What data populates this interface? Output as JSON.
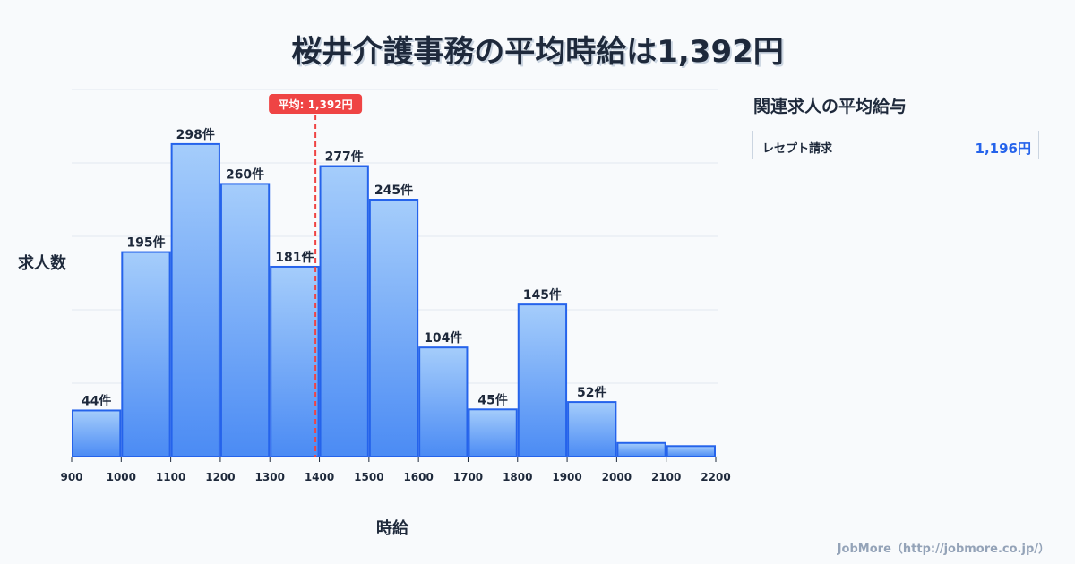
{
  "title": "桜井介護事務の平均時給は1,392円",
  "side": {
    "title": "関連求人の平均給与",
    "items": [
      {
        "name": "レセプト請求",
        "value": "1,196円"
      }
    ]
  },
  "credit": "JobMore（http://jobmore.co.jp/）",
  "colors": {
    "bar_top": "#a5cdfb",
    "bar_bottom": "#4b8bf4",
    "bar_stroke": "#2563eb",
    "mean_line": "#ef4444"
  },
  "chart_data": {
    "type": "bar",
    "title": "桜井介護事務の平均時給は1,392円",
    "xlabel": "時給",
    "ylabel": "求人数",
    "bin_edges": [
      900,
      1000,
      1100,
      1200,
      1300,
      1400,
      1500,
      1600,
      1700,
      1800,
      1900,
      2000,
      2100,
      2200
    ],
    "values": [
      44,
      195,
      298,
      260,
      181,
      277,
      245,
      104,
      45,
      145,
      52,
      13,
      10
    ],
    "data_labels": [
      "44件",
      "195件",
      "298件",
      "260件",
      "181件",
      "277件",
      "245件",
      "104件",
      "45件",
      "145件",
      "52件",
      "",
      ""
    ],
    "ylim": [
      0,
      350
    ],
    "grid": true,
    "mean": {
      "value": 1392,
      "label": "平均: 1,392円"
    }
  }
}
